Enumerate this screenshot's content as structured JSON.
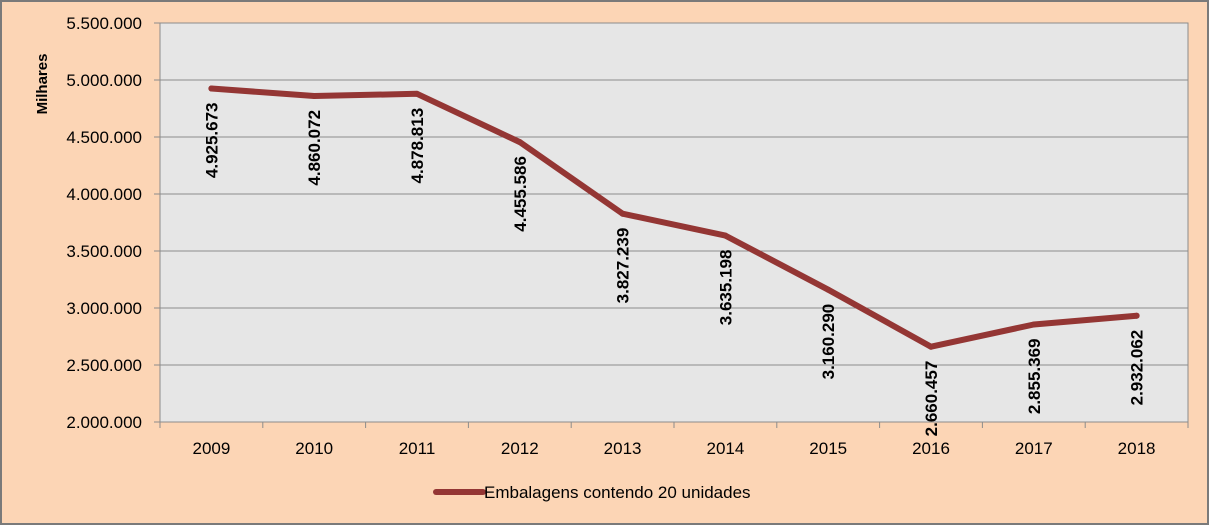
{
  "chart_data": {
    "type": "line",
    "title": "",
    "xlabel": "",
    "ylabel": "Milhares",
    "categories": [
      "2009",
      "2010",
      "2011",
      "2012",
      "2013",
      "2014",
      "2015",
      "2016",
      "2017",
      "2018"
    ],
    "series": [
      {
        "name": "Embalagens contendo 20 unidades",
        "values": [
          4925673,
          4860072,
          4878813,
          4455586,
          3827239,
          3635198,
          3160290,
          2660457,
          2855369,
          2932062
        ],
        "labels": [
          "4.925.673",
          "4.860.072",
          "4.878.813",
          "4.455.586",
          "3.827.239",
          "3.635.198",
          "3.160.290",
          "2.660.457",
          "2.855.369",
          "2.932.062"
        ],
        "color": "#943634"
      }
    ],
    "yticks": [
      "2.000.000",
      "2.500.000",
      "3.000.000",
      "3.500.000",
      "4.000.000",
      "4.500.000",
      "5.000.000",
      "5.500.000"
    ],
    "ylim": [
      2000000,
      5500000
    ],
    "grid": true,
    "legend_position": "bottom",
    "plot_background": "#e6e6e6",
    "page_background": "#fcd5b5"
  }
}
